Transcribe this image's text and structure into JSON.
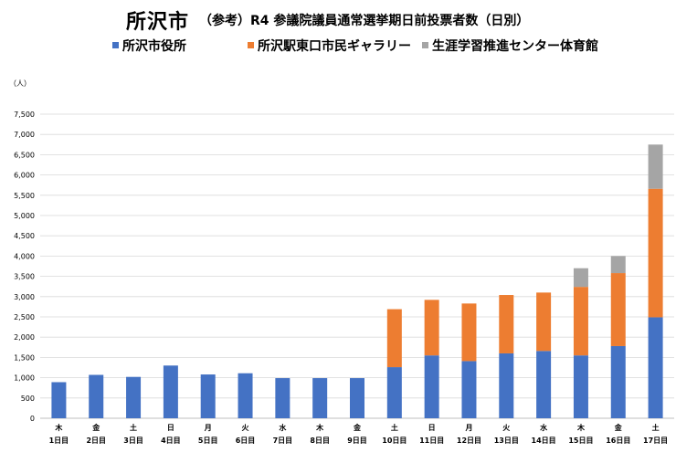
{
  "title": "所沢市",
  "subtitle": "（参考）R4 参議院議員通常選挙期日前投票者数（日別）",
  "unit_label": "（人）",
  "colors": {
    "s1": "#4472C4",
    "s2": "#ED7D31",
    "s3": "#A5A5A5",
    "grid": "#D9D9D9",
    "axis": "#BFBFBF"
  },
  "chart_data": {
    "type": "bar",
    "stacked": true,
    "title": "所沢市 （参考）R4 参議院議員通常選挙期日前投票者数（日別）",
    "xlabel": "",
    "ylabel": "（人）",
    "ylim": [
      0,
      7500
    ],
    "yticks": [
      0,
      500,
      1000,
      1500,
      2000,
      2500,
      3000,
      3500,
      4000,
      4500,
      5000,
      5500,
      6000,
      6500,
      7000,
      7500
    ],
    "ytick_labels": [
      "0",
      "500",
      "1,000",
      "1,500",
      "2,000",
      "2,500",
      "3,000",
      "3,500",
      "4,000",
      "4,500",
      "5,000",
      "5,500",
      "6,000",
      "6,500",
      "7,000",
      "7,500"
    ],
    "grid": true,
    "legend_position": "top",
    "categories_weekday": [
      "木",
      "金",
      "土",
      "日",
      "月",
      "火",
      "水",
      "木",
      "金",
      "土",
      "日",
      "月",
      "火",
      "水",
      "木",
      "金",
      "土"
    ],
    "categories_day": [
      "1日目",
      "2日目",
      "3日目",
      "4日目",
      "5日目",
      "6日目",
      "7日目",
      "8日目",
      "9日目",
      "10日目",
      "11日目",
      "12日目",
      "13日目",
      "14日目",
      "15日目",
      "16日目",
      "17日目"
    ],
    "series": [
      {
        "name": "所沢市役所",
        "color": "#4472C4",
        "values": [
          890,
          1070,
          1020,
          1300,
          1080,
          1110,
          990,
          990,
          990,
          1260,
          1550,
          1410,
          1600,
          1660,
          1550,
          1780,
          2490
        ]
      },
      {
        "name": "所沢駅東口市民ギャラリー",
        "color": "#ED7D31",
        "values": [
          0,
          0,
          0,
          0,
          0,
          0,
          0,
          0,
          0,
          1430,
          1370,
          1420,
          1440,
          1440,
          1690,
          1800,
          3170
        ]
      },
      {
        "name": "生涯学習推進センター体育館",
        "color": "#A5A5A5",
        "values": [
          0,
          0,
          0,
          0,
          0,
          0,
          0,
          0,
          0,
          0,
          0,
          0,
          0,
          0,
          460,
          420,
          1090
        ]
      }
    ]
  }
}
